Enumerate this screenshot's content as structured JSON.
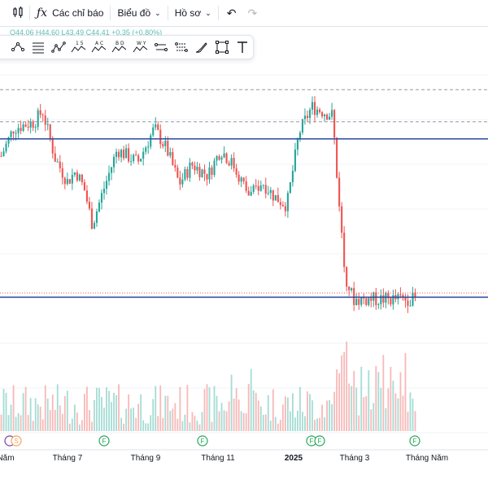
{
  "toolbar": {
    "indicators_label": "Các chỉ báo",
    "chart_label": "Biểu đồ",
    "profile_label": "Hồ sơ",
    "candle_icon": "candlestick-icon",
    "fx_icon": "fx-icon",
    "undo_icon": "undo-icon",
    "redo_icon": "redo-icon"
  },
  "ohlc_text": "O44,06 H44,60 L43,49 C44,41 +0,35 (+0,80%)",
  "drawing_tools": [
    "pattern-tool-icon",
    "horizontal-lines-icon",
    "zigzag-icon",
    "15-wave-icon",
    "abc-wave-icon",
    "abcd-wave-icon",
    "wxy-wave-icon",
    "parallel-lines-icon",
    "channel-icon",
    "brush-icon",
    "rectangle-icon",
    "text-icon"
  ],
  "chart_data": {
    "type": "candlestick",
    "x_labels": [
      "Năm",
      "Tháng 7",
      "Tháng 9",
      "Tháng 11",
      "2025",
      "Tháng 3",
      "Tháng Năm"
    ],
    "events": [
      {
        "label": "S",
        "color": "#f7a35c"
      },
      {
        "label": "F",
        "color": "#26a65b"
      },
      {
        "label": "F",
        "color": "#26a65b"
      },
      {
        "label": "F",
        "color": "#26a65b"
      },
      {
        "label": "F",
        "color": "#26a65b"
      },
      {
        "label": "F",
        "color": "#26a65b"
      }
    ],
    "colors": {
      "up": "#26a69a",
      "down": "#ef5350",
      "line": "#2a4a9e",
      "dashed": "#9598a1"
    },
    "price_segments": [
      {
        "from": 0.0,
        "to": 0.03,
        "start": 0.67,
        "end": 0.8
      },
      {
        "from": 0.03,
        "to": 0.08,
        "start": 0.8,
        "end": 0.83
      },
      {
        "from": 0.08,
        "to": 0.1,
        "start": 0.83,
        "end": 0.88
      },
      {
        "from": 0.1,
        "to": 0.13,
        "start": 0.88,
        "end": 0.66
      },
      {
        "from": 0.13,
        "to": 0.16,
        "start": 0.66,
        "end": 0.55
      },
      {
        "from": 0.16,
        "to": 0.18,
        "start": 0.55,
        "end": 0.6
      },
      {
        "from": 0.18,
        "to": 0.2,
        "start": 0.6,
        "end": 0.52
      },
      {
        "from": 0.2,
        "to": 0.22,
        "start": 0.52,
        "end": 0.35
      },
      {
        "from": 0.22,
        "to": 0.245,
        "start": 0.35,
        "end": 0.5
      },
      {
        "from": 0.245,
        "to": 0.28,
        "start": 0.5,
        "end": 0.7
      },
      {
        "from": 0.28,
        "to": 0.33,
        "start": 0.7,
        "end": 0.64
      },
      {
        "from": 0.33,
        "to": 0.37,
        "start": 0.64,
        "end": 0.8
      },
      {
        "from": 0.37,
        "to": 0.4,
        "start": 0.8,
        "end": 0.7
      },
      {
        "from": 0.4,
        "to": 0.43,
        "start": 0.7,
        "end": 0.54
      },
      {
        "from": 0.43,
        "to": 0.46,
        "start": 0.54,
        "end": 0.63
      },
      {
        "from": 0.46,
        "to": 0.5,
        "start": 0.63,
        "end": 0.58
      },
      {
        "from": 0.5,
        "to": 0.53,
        "start": 0.58,
        "end": 0.7
      },
      {
        "from": 0.53,
        "to": 0.56,
        "start": 0.7,
        "end": 0.63
      },
      {
        "from": 0.56,
        "to": 0.6,
        "start": 0.63,
        "end": 0.48
      },
      {
        "from": 0.6,
        "to": 0.63,
        "start": 0.48,
        "end": 0.55
      },
      {
        "from": 0.63,
        "to": 0.66,
        "start": 0.55,
        "end": 0.48
      },
      {
        "from": 0.66,
        "to": 0.69,
        "start": 0.48,
        "end": 0.44
      },
      {
        "from": 0.69,
        "to": 0.72,
        "start": 0.44,
        "end": 0.78
      },
      {
        "from": 0.72,
        "to": 0.75,
        "start": 0.78,
        "end": 0.9
      },
      {
        "from": 0.75,
        "to": 0.8,
        "start": 0.9,
        "end": 0.86
      },
      {
        "from": 0.8,
        "to": 0.805,
        "start": 0.86,
        "end": 0.74
      },
      {
        "from": 0.805,
        "to": 0.815,
        "start": 0.66,
        "end": 0.5
      },
      {
        "from": 0.815,
        "to": 0.82,
        "start": 0.5,
        "end": 0.36
      },
      {
        "from": 0.82,
        "to": 0.83,
        "start": 0.36,
        "end": 0.12
      },
      {
        "from": 0.83,
        "to": 0.85,
        "start": 0.12,
        "end": 0.0
      }
    ],
    "levels": [
      {
        "y": 0.98,
        "style": "dashed"
      },
      {
        "y": 0.83,
        "style": "dashed"
      },
      {
        "y": 0.75,
        "style": "solid"
      },
      {
        "y": 0.01,
        "style": "solid"
      },
      {
        "y": 0.03,
        "style": "dotted-red"
      }
    ]
  }
}
